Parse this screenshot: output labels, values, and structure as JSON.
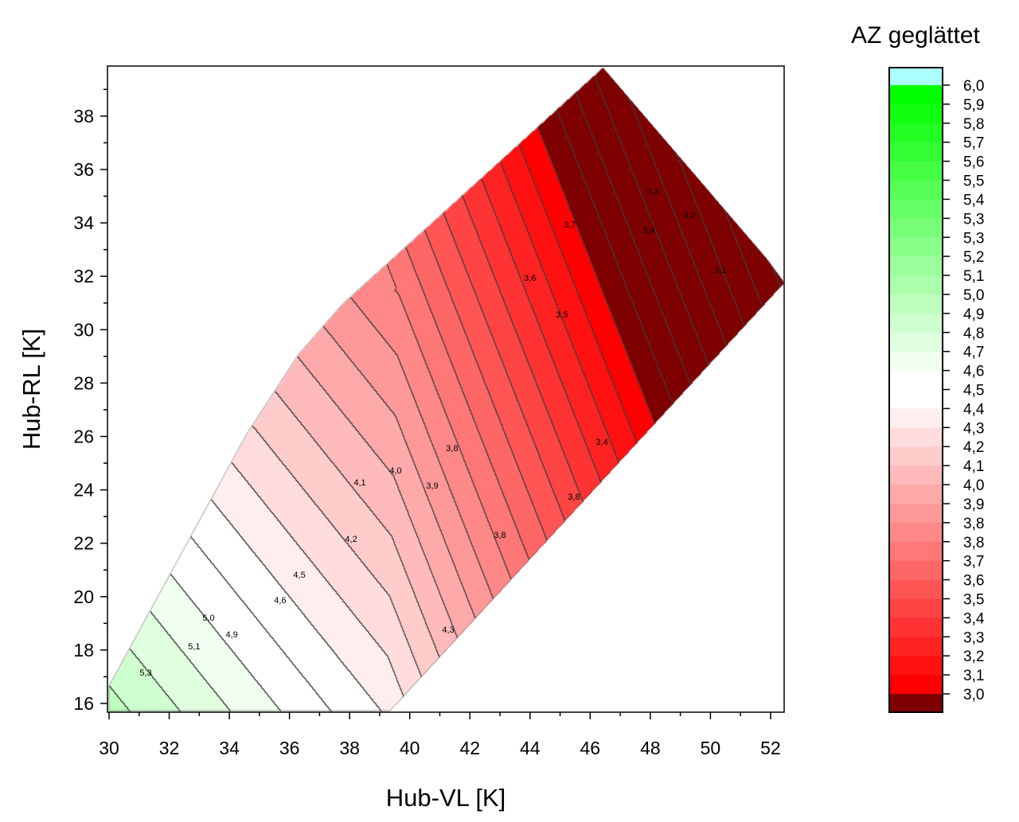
{
  "chart_data": {
    "type": "heatmap",
    "subtype": "filled-contour",
    "xlabel": "Hub-VL [K]",
    "ylabel": "Hub-RL [K]",
    "xlim": [
      29.95,
      52.45
    ],
    "ylim": [
      15.64,
      39.87
    ],
    "xticks": [
      "30",
      "32",
      "34",
      "36",
      "38",
      "40",
      "42",
      "44",
      "46",
      "48",
      "50",
      "52"
    ],
    "yticks": [
      "16",
      "18",
      "20",
      "22",
      "24",
      "26",
      "28",
      "30",
      "32",
      "34",
      "36",
      "38"
    ],
    "grid": false,
    "colorbar": {
      "title": "AZ geglättet",
      "position": "right",
      "range": [
        3.0,
        6.0
      ],
      "labels": [
        "6,0",
        "5,9",
        "5,8",
        "5,7",
        "5,6",
        "5,5",
        "5,4",
        "5,3",
        "5,3",
        "5,2",
        "5,1",
        "5,0",
        "4,9",
        "4,8",
        "4,7",
        "4,6",
        "4,5",
        "4,4",
        "4,3",
        "4,2",
        "4,1",
        "4,0",
        "3,9",
        "3,8",
        "3,8",
        "3,7",
        "3,6",
        "3,5",
        "3,4",
        "3,3",
        "3,2",
        "3,1",
        "3,0"
      ],
      "colors": {
        "low": "#ff0000",
        "mid": "#ffffff",
        "high": "#00ff00",
        "above": "#aaffff",
        "below": "#7f0000"
      }
    },
    "data_region": [
      [
        30,
        15.73
      ],
      [
        39.35,
        15.73
      ],
      [
        52.45,
        31.77
      ],
      [
        51.87,
        32.66
      ],
      [
        46.42,
        39.82
      ],
      [
        37.76,
        30.96
      ],
      [
        36.3,
        29.08
      ],
      [
        34.58,
        26.1
      ],
      [
        30,
        16.66
      ]
    ],
    "contour_labels": [
      {
        "text": "3,3",
        "x": 48.08,
        "y": 35.2
      },
      {
        "text": "3,2",
        "x": 49.3,
        "y": 34.3
      },
      {
        "text": "3,7",
        "x": 45.33,
        "y": 33.94
      },
      {
        "text": "3,4",
        "x": 47.95,
        "y": 33.73
      },
      {
        "text": "3,6",
        "x": 44.0,
        "y": 31.95
      },
      {
        "text": "3,1",
        "x": 50.33,
        "y": 32.24
      },
      {
        "text": "3,5",
        "x": 45.06,
        "y": 30.57
      },
      {
        "text": "3,4",
        "x": 46.39,
        "y": 25.8
      },
      {
        "text": "3,8",
        "x": 41.41,
        "y": 25.57
      },
      {
        "text": "4,0",
        "x": 39.53,
        "y": 24.73
      },
      {
        "text": "4,1",
        "x": 38.34,
        "y": 24.29
      },
      {
        "text": "3,9",
        "x": 40.75,
        "y": 24.17
      },
      {
        "text": "3,8",
        "x": 45.46,
        "y": 23.75
      },
      {
        "text": "4,2",
        "x": 38.05,
        "y": 22.17
      },
      {
        "text": "3,8",
        "x": 43.0,
        "y": 22.32
      },
      {
        "text": "4,5",
        "x": 36.33,
        "y": 20.83
      },
      {
        "text": "4,6",
        "x": 35.69,
        "y": 19.87
      },
      {
        "text": "5,0",
        "x": 33.31,
        "y": 19.22
      },
      {
        "text": "4,9",
        "x": 34.08,
        "y": 18.59
      },
      {
        "text": "5,1",
        "x": 32.83,
        "y": 18.15
      },
      {
        "text": "4,3",
        "x": 41.28,
        "y": 18.77
      },
      {
        "text": "5,3",
        "x": 31.22,
        "y": 17.16
      }
    ]
  }
}
